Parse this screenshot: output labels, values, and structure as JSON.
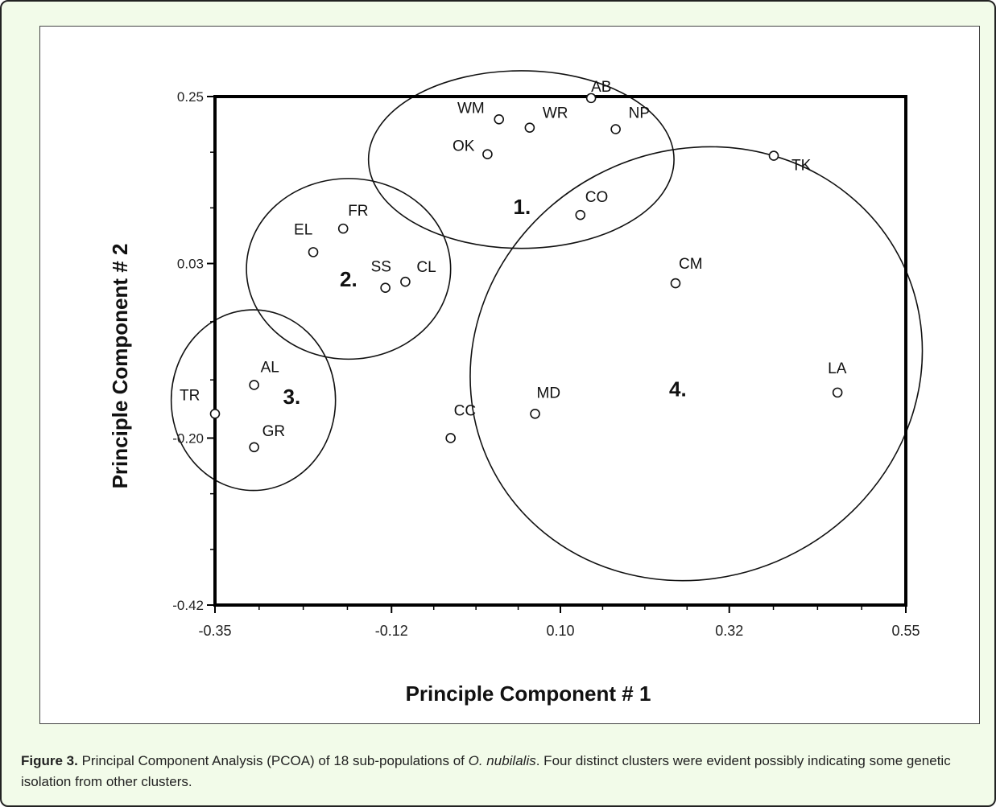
{
  "chart_data": {
    "type": "scatter",
    "xlabel": "Principle Component # 1",
    "ylabel": "Principle Component # 2",
    "xlim": [
      -0.35,
      0.55
    ],
    "ylim": [
      -0.42,
      0.25
    ],
    "xticks": [
      {
        "value": -0.35,
        "label": "-0.35"
      },
      {
        "value": -0.12,
        "label": "-0.12"
      },
      {
        "value": 0.1,
        "label": "0.10"
      },
      {
        "value": 0.32,
        "label": "0.32"
      },
      {
        "value": 0.55,
        "label": "0.55"
      }
    ],
    "yticks": [
      {
        "value": 0.25,
        "label": "0.25"
      },
      {
        "value": 0.03,
        "label": "0.03"
      },
      {
        "value": -0.2,
        "label": "-0.20"
      },
      {
        "value": -0.42,
        "label": "-0.42"
      }
    ],
    "points": [
      {
        "label": "AB",
        "x": 0.14,
        "y": 0.248
      },
      {
        "label": "WM",
        "x": 0.02,
        "y": 0.22
      },
      {
        "label": "WR",
        "x": 0.06,
        "y": 0.209
      },
      {
        "label": "NP",
        "x": 0.172,
        "y": 0.207
      },
      {
        "label": "OK",
        "x": 0.005,
        "y": 0.174
      },
      {
        "label": "TK",
        "x": 0.378,
        "y": 0.172
      },
      {
        "label": "CO",
        "x": 0.126,
        "y": 0.094
      },
      {
        "label": "FR",
        "x": -0.183,
        "y": 0.076
      },
      {
        "label": "EL",
        "x": -0.222,
        "y": 0.045
      },
      {
        "label": "CL",
        "x": -0.102,
        "y": 0.006
      },
      {
        "label": "SS",
        "x": -0.128,
        "y": -0.002
      },
      {
        "label": "CM",
        "x": 0.25,
        "y": 0.004
      },
      {
        "label": "AL",
        "x": -0.299,
        "y": -0.13
      },
      {
        "label": "TR",
        "x": -0.35,
        "y": -0.168
      },
      {
        "label": "LA",
        "x": 0.461,
        "y": -0.14
      },
      {
        "label": "MD",
        "x": 0.067,
        "y": -0.168
      },
      {
        "label": "CC",
        "x": -0.043,
        "y": -0.2
      },
      {
        "label": "GR",
        "x": -0.299,
        "y": -0.212
      }
    ],
    "clusters": [
      {
        "label": "1.",
        "cx": 0.049,
        "cy": 0.167,
        "rx": 0.199,
        "ry": 0.117
      },
      {
        "label": "2.",
        "cx": -0.176,
        "cy": 0.023,
        "rx": 0.133,
        "ry": 0.119
      },
      {
        "label": "3.",
        "cx": -0.3,
        "cy": -0.15,
        "rx": 0.107,
        "ry": 0.119
      },
      {
        "label": "4.",
        "cx": 0.277,
        "cy": -0.102,
        "rx": 0.299,
        "ry": 0.281,
        "rotate": -28
      }
    ]
  },
  "caption": {
    "label": "Figure 3.",
    "text_before": "Principal Component Analysis (PCOA) of 18 sub-populations of ",
    "species": "O. nubilalis",
    "text_after": ". Four distinct clusters were evident possibly indicating some genetic isolation from other clusters."
  }
}
